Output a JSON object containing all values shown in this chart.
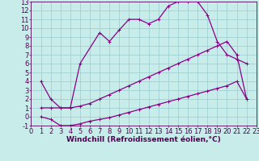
{
  "title": "",
  "xlabel": "Windchill (Refroidissement éolien,°C)",
  "ylabel": "",
  "bg_color": "#c8ecea",
  "line_color": "#880088",
  "grid_color": "#99cccc",
  "xlim": [
    0,
    23
  ],
  "ylim": [
    -1,
    13
  ],
  "xticks": [
    0,
    1,
    2,
    3,
    4,
    5,
    6,
    7,
    8,
    9,
    10,
    11,
    12,
    13,
    14,
    15,
    16,
    17,
    18,
    19,
    20,
    21,
    22,
    23
  ],
  "yticks": [
    -1,
    0,
    1,
    2,
    3,
    4,
    5,
    6,
    7,
    8,
    9,
    10,
    11,
    12,
    13
  ],
  "line1_x": [
    1,
    2,
    3,
    4,
    5,
    7,
    8,
    9,
    10,
    11,
    12,
    13,
    14,
    15,
    16,
    17,
    18,
    19,
    20,
    21,
    22
  ],
  "line1_y": [
    4,
    2,
    1,
    1,
    6,
    9.5,
    8.5,
    9.8,
    11,
    11,
    10.5,
    11,
    12.5,
    13,
    13,
    13,
    11.5,
    8.5,
    7,
    6.5,
    6
  ],
  "line2_x": [
    1,
    2,
    3,
    4,
    5,
    6,
    7,
    8,
    9,
    10,
    11,
    12,
    13,
    14,
    15,
    16,
    17,
    18,
    19,
    20,
    21,
    22
  ],
  "line2_y": [
    1,
    1,
    1,
    1,
    1.2,
    1.5,
    2.0,
    2.5,
    3.0,
    3.5,
    4.0,
    4.5,
    5.0,
    5.5,
    6.0,
    6.5,
    7.0,
    7.5,
    8.0,
    8.5,
    7,
    2
  ],
  "line3_x": [
    1,
    2,
    3,
    4,
    5,
    6,
    7,
    8,
    9,
    10,
    11,
    12,
    13,
    14,
    15,
    16,
    17,
    18,
    19,
    20,
    21,
    22
  ],
  "line3_y": [
    0,
    -0.3,
    -1,
    -1,
    -0.8,
    -0.5,
    -0.3,
    -0.1,
    0.2,
    0.5,
    0.8,
    1.1,
    1.4,
    1.7,
    2.0,
    2.3,
    2.6,
    2.9,
    3.2,
    3.5,
    4,
    2
  ],
  "marker_size": 2.5,
  "linewidth": 0.9,
  "font_size": 6.5,
  "tick_font_size": 6
}
